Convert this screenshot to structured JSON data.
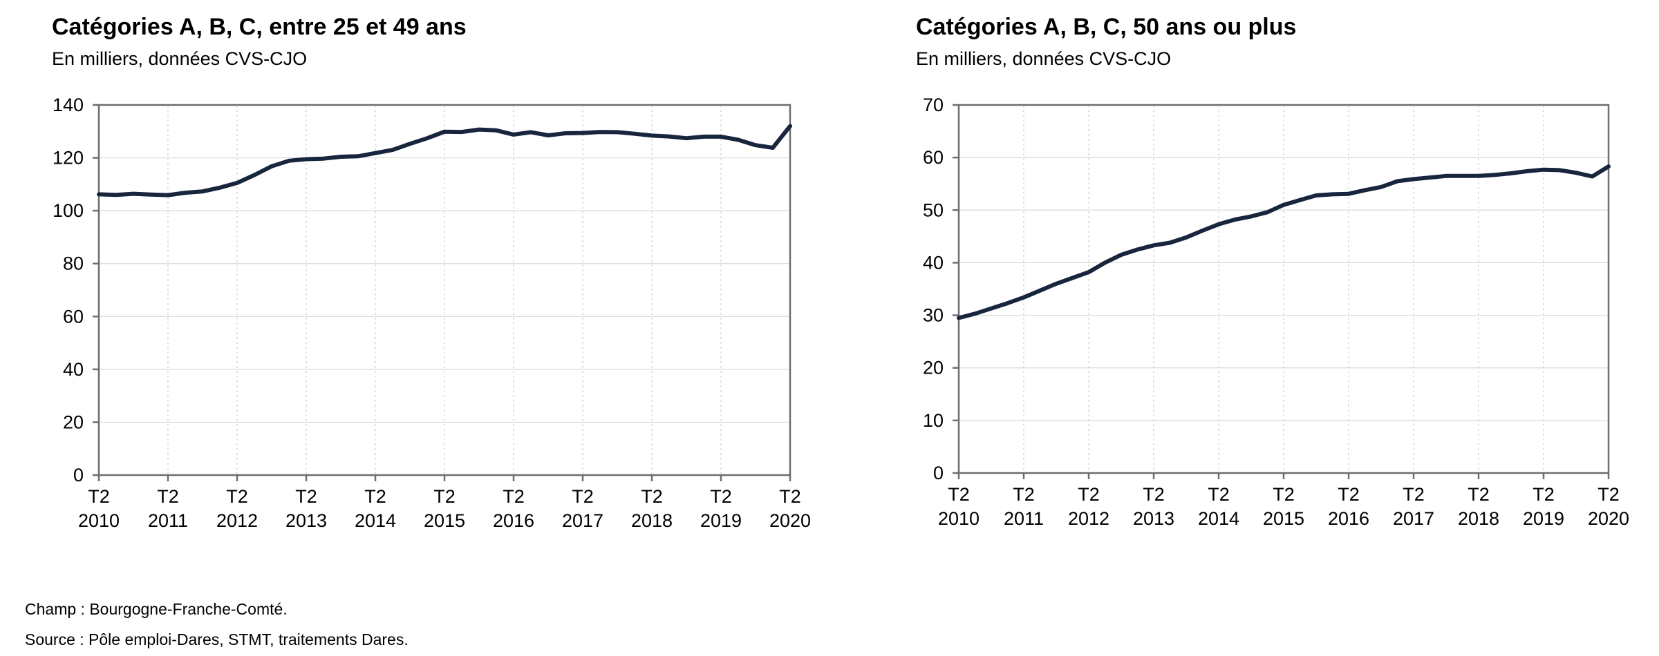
{
  "chart_data": [
    {
      "type": "line",
      "title": "Catégories A, B, C, entre 25 et 49 ans",
      "subtitle": "En milliers, données CVS-CJO",
      "ylim": [
        0,
        140
      ],
      "yticks": [
        0,
        20,
        40,
        60,
        80,
        100,
        120,
        140
      ],
      "xtick_labels": [
        [
          "T2",
          "2010"
        ],
        [
          "T2",
          "2011"
        ],
        [
          "T2",
          "2012"
        ],
        [
          "T2",
          "2013"
        ],
        [
          "T2",
          "2014"
        ],
        [
          "T2",
          "2015"
        ],
        [
          "T2",
          "2016"
        ],
        [
          "T2",
          "2017"
        ],
        [
          "T2",
          "2018"
        ],
        [
          "T2",
          "2019"
        ],
        [
          "T2",
          "2020"
        ]
      ],
      "grid": true,
      "line_color": "#17253d",
      "x": [
        "2010 T2",
        "2010 T3",
        "2010 T4",
        "2011 T1",
        "2011 T2",
        "2011 T3",
        "2011 T4",
        "2012 T1",
        "2012 T2",
        "2012 T3",
        "2012 T4",
        "2013 T1",
        "2013 T2",
        "2013 T3",
        "2013 T4",
        "2014 T1",
        "2014 T2",
        "2014 T3",
        "2014 T4",
        "2015 T1",
        "2015 T2",
        "2015 T3",
        "2015 T4",
        "2016 T1",
        "2016 T2",
        "2016 T3",
        "2016 T4",
        "2017 T1",
        "2017 T2",
        "2017 T3",
        "2017 T4",
        "2018 T1",
        "2018 T2",
        "2018 T3",
        "2018 T4",
        "2019 T1",
        "2019 T2",
        "2019 T3",
        "2019 T4",
        "2020 T1",
        "2020 T2"
      ],
      "series": [
        {
          "values": [
            106.2,
            106.0,
            106.4,
            106.1,
            105.9,
            106.8,
            107.3,
            108.7,
            110.5,
            113.5,
            116.8,
            118.9,
            119.5,
            119.7,
            120.4,
            120.6,
            121.8,
            123.0,
            125.3,
            127.4,
            129.9,
            129.8,
            130.7,
            130.4,
            128.8,
            129.7,
            128.5,
            129.3,
            129.4,
            129.8,
            129.7,
            129.1,
            128.4,
            128.1,
            127.4,
            128.0,
            128.0,
            126.8,
            124.8,
            123.8,
            132.0
          ]
        }
      ]
    },
    {
      "type": "line",
      "title": "Catégories A, B, C, 50 ans ou plus",
      "subtitle": "En milliers, données CVS-CJO",
      "ylim": [
        0,
        70
      ],
      "yticks": [
        0,
        10,
        20,
        30,
        40,
        50,
        60,
        70
      ],
      "xtick_labels": [
        [
          "T2",
          "2010"
        ],
        [
          "T2",
          "2011"
        ],
        [
          "T2",
          "2012"
        ],
        [
          "T2",
          "2013"
        ],
        [
          "T2",
          "2014"
        ],
        [
          "T2",
          "2015"
        ],
        [
          "T2",
          "2016"
        ],
        [
          "T2",
          "2017"
        ],
        [
          "T2",
          "2018"
        ],
        [
          "T2",
          "2019"
        ],
        [
          "T2",
          "2020"
        ]
      ],
      "grid": true,
      "line_color": "#17253d",
      "x": [
        "2010 T2",
        "2010 T3",
        "2010 T4",
        "2011 T1",
        "2011 T2",
        "2011 T3",
        "2011 T4",
        "2012 T1",
        "2012 T2",
        "2012 T3",
        "2012 T4",
        "2013 T1",
        "2013 T2",
        "2013 T3",
        "2013 T4",
        "2014 T1",
        "2014 T2",
        "2014 T3",
        "2014 T4",
        "2015 T1",
        "2015 T2",
        "2015 T3",
        "2015 T4",
        "2016 T1",
        "2016 T2",
        "2016 T3",
        "2016 T4",
        "2017 T1",
        "2017 T2",
        "2017 T3",
        "2017 T4",
        "2018 T1",
        "2018 T2",
        "2018 T3",
        "2018 T4",
        "2019 T1",
        "2019 T2",
        "2019 T3",
        "2019 T4",
        "2020 T1",
        "2020 T2"
      ],
      "series": [
        {
          "values": [
            29.5,
            30.3,
            31.3,
            32.3,
            33.4,
            34.7,
            36.0,
            37.1,
            38.2,
            40.0,
            41.5,
            42.5,
            43.3,
            43.8,
            44.8,
            46.1,
            47.3,
            48.2,
            48.8,
            49.6,
            51.0,
            51.9,
            52.8,
            53.0,
            53.1,
            53.8,
            54.4,
            55.5,
            55.9,
            56.2,
            56.5,
            56.5,
            56.5,
            56.7,
            57.0,
            57.4,
            57.7,
            57.6,
            57.1,
            56.4,
            58.3
          ]
        }
      ]
    }
  ],
  "footnotes": {
    "champ": "Champ : Bourgogne-Franche-Comté.",
    "source": "Source : Pôle emploi-Dares, STMT, traitements Dares."
  }
}
